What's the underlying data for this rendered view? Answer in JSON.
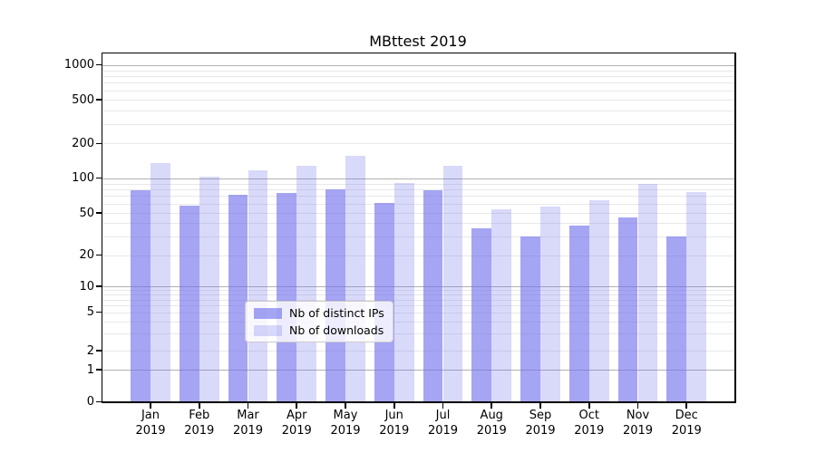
{
  "chart_data": {
    "type": "bar",
    "title": "MBttest 2019",
    "xlabel": "",
    "ylabel": "",
    "yscale": "symlog",
    "grid": true,
    "ylim": [
      0,
      1260
    ],
    "yticks": [
      0,
      1,
      2,
      5,
      10,
      20,
      50,
      100,
      200,
      500,
      1000
    ],
    "categories": [
      "Jan 2019",
      "Feb 2019",
      "Mar 2019",
      "Apr 2019",
      "May 2019",
      "Jun 2019",
      "Jul 2019",
      "Aug 2019",
      "Sep 2019",
      "Oct 2019",
      "Nov 2019",
      "Dec 2019"
    ],
    "series": [
      {
        "name": "Nb of distinct IPs",
        "color": "rgba(110,110,235,0.62)",
        "values": [
          79,
          58,
          72,
          75,
          80,
          61,
          79,
          36,
          30,
          38,
          45,
          30
        ]
      },
      {
        "name": "Nb of downloads",
        "color": "rgba(110,110,235,0.26)",
        "values": [
          136,
          104,
          116,
          129,
          157,
          91,
          128,
          54,
          57,
          64,
          89,
          76
        ]
      }
    ],
    "legend_position": "lower-center"
  },
  "colors": {
    "major_grid": "#b0b0b0",
    "minor_grid": "#e8e8e8",
    "spine": "#000000",
    "text": "#000000"
  }
}
